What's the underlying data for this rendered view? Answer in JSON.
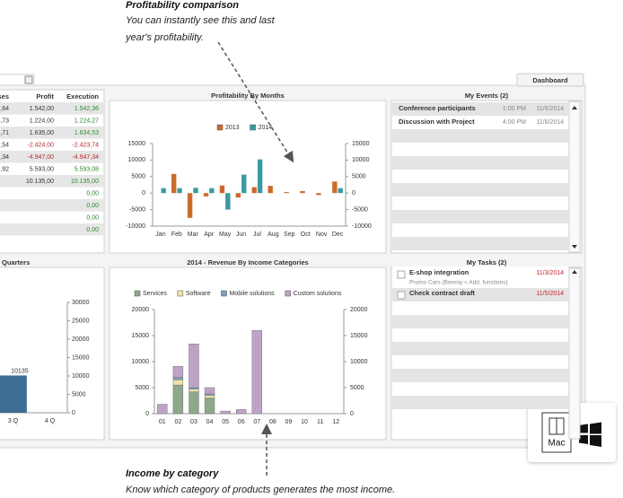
{
  "annotations": [
    {
      "title": "Profitability comparison",
      "lines": [
        "You can instantly see this and last",
        "year's profitability."
      ]
    },
    {
      "title": "Income by category",
      "lines": [
        "Know which category of products generates the most income."
      ]
    }
  ],
  "tab": "Dashboard",
  "table": {
    "header": [
      "ses",
      "Profit",
      "Execution"
    ],
    "rows": [
      [
        ",64",
        "1.542,00",
        "1.542,36"
      ],
      [
        ",73",
        "1.224,00",
        "1.224,27"
      ],
      [
        ",71",
        "1.635,00",
        "1.634,53"
      ],
      [
        ",54",
        "-2.424,00",
        "-2.423,74"
      ],
      [
        ",34",
        "-4.947,00",
        "-4.947,34"
      ],
      [
        ",92",
        "5.593,00",
        "5.593,08"
      ],
      [
        null,
        "10.135,00",
        "10.135,00"
      ],
      [
        null,
        null,
        "0,00"
      ],
      [
        null,
        null,
        "0,00"
      ],
      [
        null,
        null,
        "0,00"
      ],
      [
        null,
        null,
        "0,00"
      ]
    ]
  },
  "chart_data": [
    {
      "type": "bar",
      "title": "Quarters",
      "categories": [
        "3 Q",
        "4 Q"
      ],
      "values": [
        10135,
        null
      ],
      "color": "#3d6e96",
      "data_labels": true,
      "ylim": [
        0,
        30000
      ],
      "yticks": [
        0,
        5000,
        10000,
        15000,
        20000,
        25000,
        30000
      ]
    },
    {
      "type": "bar",
      "title": "Profitability By Months",
      "categories": [
        "Jan",
        "Feb",
        "Mar",
        "Apr",
        "May",
        "Jun",
        "Jul",
        "Aug",
        "Sep",
        "Oct",
        "Nov",
        "Dec"
      ],
      "series": [
        {
          "name": "2013",
          "color": "#cc6a2c",
          "values": [
            0,
            5800,
            -7500,
            -1000,
            2300,
            -1300,
            1800,
            2200,
            300,
            600,
            -600,
            3500
          ]
        },
        {
          "name": "2014",
          "color": "#3a9aa4",
          "values": [
            1500,
            1500,
            1600,
            1500,
            -5000,
            5600,
            10200,
            0,
            0,
            0,
            0,
            1500
          ]
        }
      ],
      "legend": "top",
      "ylim": [
        -10000,
        15000
      ],
      "yticks": [
        -10000,
        -5000,
        0,
        5000,
        10000,
        15000
      ]
    },
    {
      "type": "stacked_bar",
      "title": "2014  - Revenue By Income Categories",
      "categories": [
        "01",
        "02",
        "03",
        "04",
        "05",
        "06",
        "07",
        "08",
        "09",
        "10",
        "11",
        "12"
      ],
      "series": [
        {
          "name": "Services",
          "color": "#8da88a",
          "values": [
            0,
            5500,
            4200,
            3000,
            0,
            0,
            0,
            0,
            0,
            0,
            0,
            0
          ]
        },
        {
          "name": "Software",
          "color": "#efe3a8",
          "values": [
            0,
            1000,
            500,
            500,
            0,
            0,
            0,
            0,
            0,
            0,
            0,
            0
          ]
        },
        {
          "name": "Mobile solutions",
          "color": "#7f9dc2",
          "values": [
            0,
            500,
            300,
            300,
            0,
            0,
            0,
            0,
            0,
            0,
            0,
            0
          ]
        },
        {
          "name": "Custom solutions",
          "color": "#bfa3c7",
          "values": [
            1800,
            2100,
            8400,
            1200,
            500,
            800,
            16000,
            0,
            0,
            0,
            0,
            0
          ]
        }
      ],
      "legend": "top",
      "ylim": [
        0,
        20000
      ],
      "yticks": [
        0,
        5000,
        10000,
        15000,
        20000
      ]
    }
  ],
  "events": {
    "title": "My Events (2)",
    "rows": [
      {
        "name": "Conference participants",
        "time": "1:00 PM",
        "date": "11/6/2014"
      },
      {
        "name": "Discussion with Project",
        "time": "4:00 PM",
        "date": "11/6/2014"
      }
    ]
  },
  "tasks": {
    "title": "My Tasks (2)",
    "rows": [
      {
        "name": "E-shop integration",
        "detail": "Promo Cars (Benroy + Add. functions)",
        "date": "11/3/2014"
      },
      {
        "name": "Check contract draft",
        "date": "11/5/2014"
      }
    ]
  },
  "badge": {
    "label": "Mac"
  }
}
